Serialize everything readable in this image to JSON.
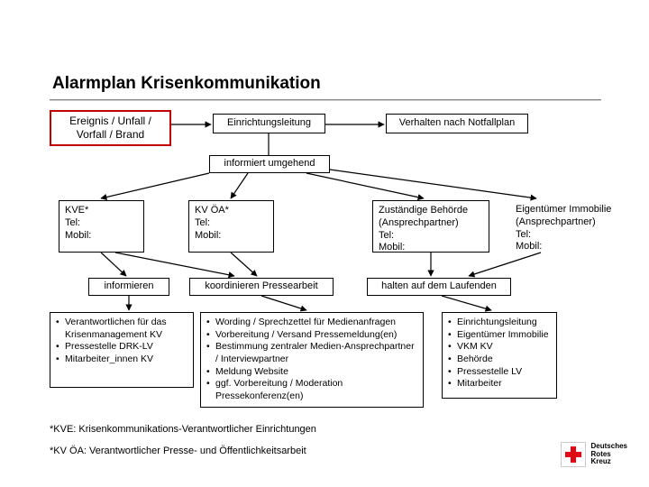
{
  "title": "Alarmplan Krisenkommunikation",
  "colors": {
    "border_red": "#c00000",
    "line": "#000000"
  },
  "row1": {
    "trigger": {
      "l1": "Ereignis / Unfall /",
      "l2": "Vorfall / Brand"
    },
    "einrichtung": "Einrichtungsleitung",
    "verhalten": "Verhalten nach Notfallplan"
  },
  "informiert": "informiert umgehend",
  "contacts": {
    "kve": {
      "name": "KVE*",
      "tel": "Tel:",
      "mobil": "Mobil:"
    },
    "kvoa": {
      "name": " KV ÖA*",
      "tel": "Tel:",
      "mobil": "Mobil:"
    },
    "behoerde": {
      "l1": "Zuständige Behörde",
      "l2": "(Ansprechpartner)",
      "tel": "Tel:",
      "mobil": "Mobil:"
    },
    "eigentuemer": {
      "l1": "Eigentümer Immobilie",
      "l2": "(Ansprechpartner)",
      "tel": "Tel:",
      "mobil": "Mobil:"
    }
  },
  "row3": {
    "informieren": "informieren",
    "koord": "koordinieren Pressearbeit",
    "halten": "halten auf dem Laufenden"
  },
  "col1_items": [
    "Verantwortlichen für das Krisenmanagement KV",
    "Pressestelle DRK-LV",
    "Mitarbeiter_innen KV"
  ],
  "col2_items": [
    "Wording / Sprechzettel für Medienanfragen",
    "Vorbereitung / Versand Pressemeldung(en)",
    "Bestimmung zentraler Medien-Ansprechpartner / Interviewpartner",
    "Meldung Website",
    "ggf. Vorbereitung / Moderation Pressekonferenz(en)"
  ],
  "col3_items": [
    "Einrichtungsleitung",
    "Eigentümer Immobilie",
    "VKM KV",
    "Behörde",
    "Pressestelle LV",
    "Mitarbeiter"
  ],
  "footnotes": {
    "f1": "*KVE: Krisenkommunikations-Verantwortlicher Einrichtungen",
    "f2": "*KV ÖA: Verantwortlicher Presse- und Öffentlichkeitsarbeit"
  },
  "logo": {
    "l1": "Deutsches",
    "l2": "Rotes",
    "l3": "Kreuz"
  }
}
